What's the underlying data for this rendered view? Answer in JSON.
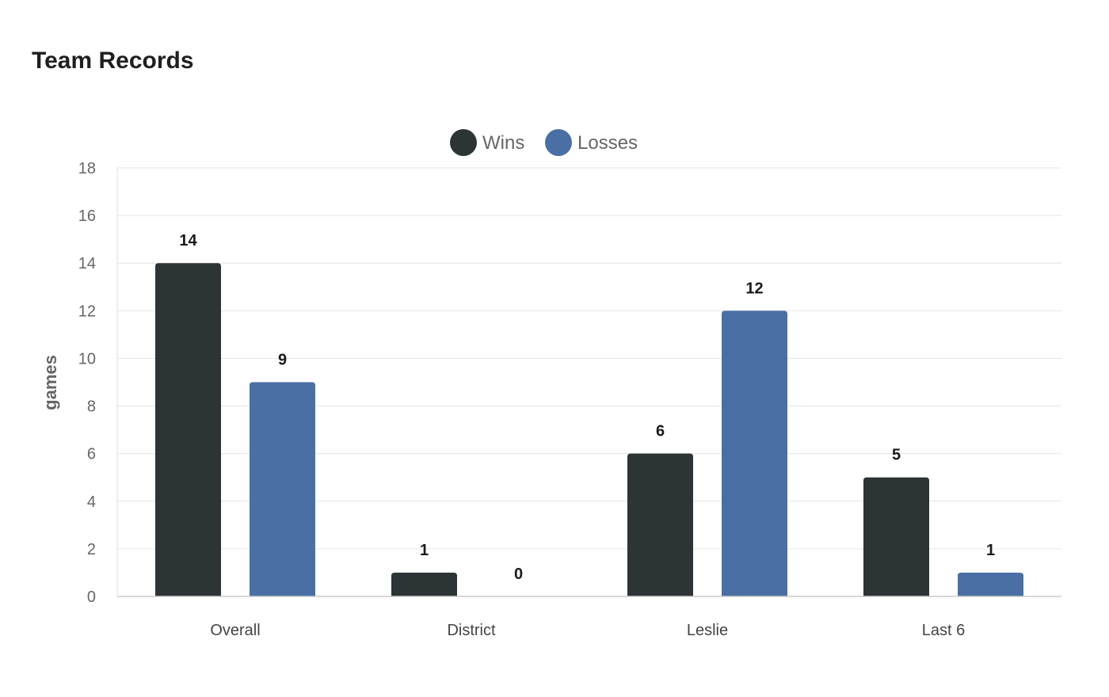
{
  "chart_data": {
    "type": "bar",
    "title": "Team Records",
    "ylabel": "games",
    "xlabel": "",
    "ylim": [
      0,
      18
    ],
    "yticks": [
      0,
      2,
      4,
      6,
      8,
      10,
      12,
      14,
      16,
      18
    ],
    "categories": [
      "Overall",
      "District",
      "Leslie",
      "Last 6"
    ],
    "series": [
      {
        "name": "Wins",
        "values": [
          14,
          1,
          6,
          5
        ],
        "color": "#2d3436"
      },
      {
        "name": "Losses",
        "values": [
          9,
          0,
          12,
          1
        ],
        "color": "#4a6fa5"
      }
    ],
    "legend_position": "top-center",
    "grid": true,
    "data_labels": true
  }
}
